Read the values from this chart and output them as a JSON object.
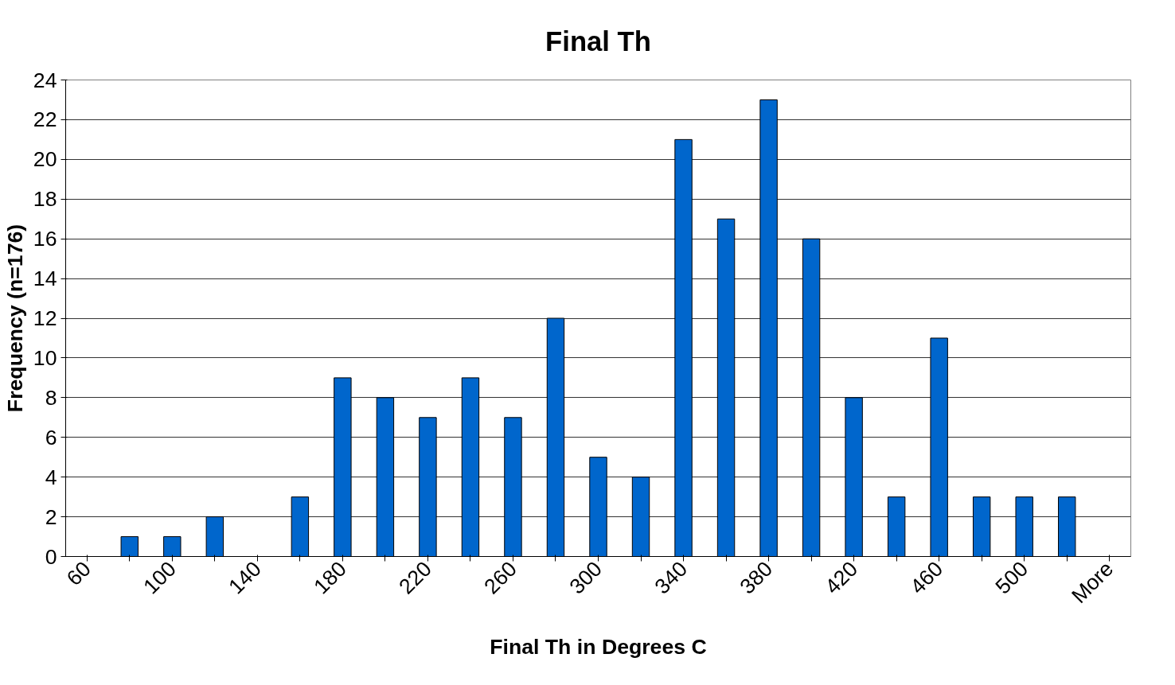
{
  "chart_data": {
    "type": "bar",
    "title": "Final Th",
    "xlabel": "Final Th in Degrees C",
    "ylabel": "Frequency (n=176)",
    "categories": [
      "60",
      null,
      "100",
      null,
      "140",
      null,
      "180",
      null,
      "220",
      null,
      "260",
      null,
      "300",
      null,
      "340",
      null,
      "380",
      null,
      "420",
      null,
      "460",
      null,
      "500",
      null,
      "More"
    ],
    "values": [
      0,
      1,
      1,
      2,
      0,
      3,
      9,
      8,
      7,
      9,
      7,
      12,
      5,
      4,
      21,
      17,
      23,
      16,
      8,
      3,
      11,
      3,
      3,
      3,
      0
    ],
    "color": "#0066cc",
    "ylim": [
      0,
      24
    ],
    "yticks": [
      0,
      2,
      4,
      6,
      8,
      10,
      12,
      14,
      16,
      18,
      20,
      22,
      24
    ],
    "grid": "y"
  }
}
